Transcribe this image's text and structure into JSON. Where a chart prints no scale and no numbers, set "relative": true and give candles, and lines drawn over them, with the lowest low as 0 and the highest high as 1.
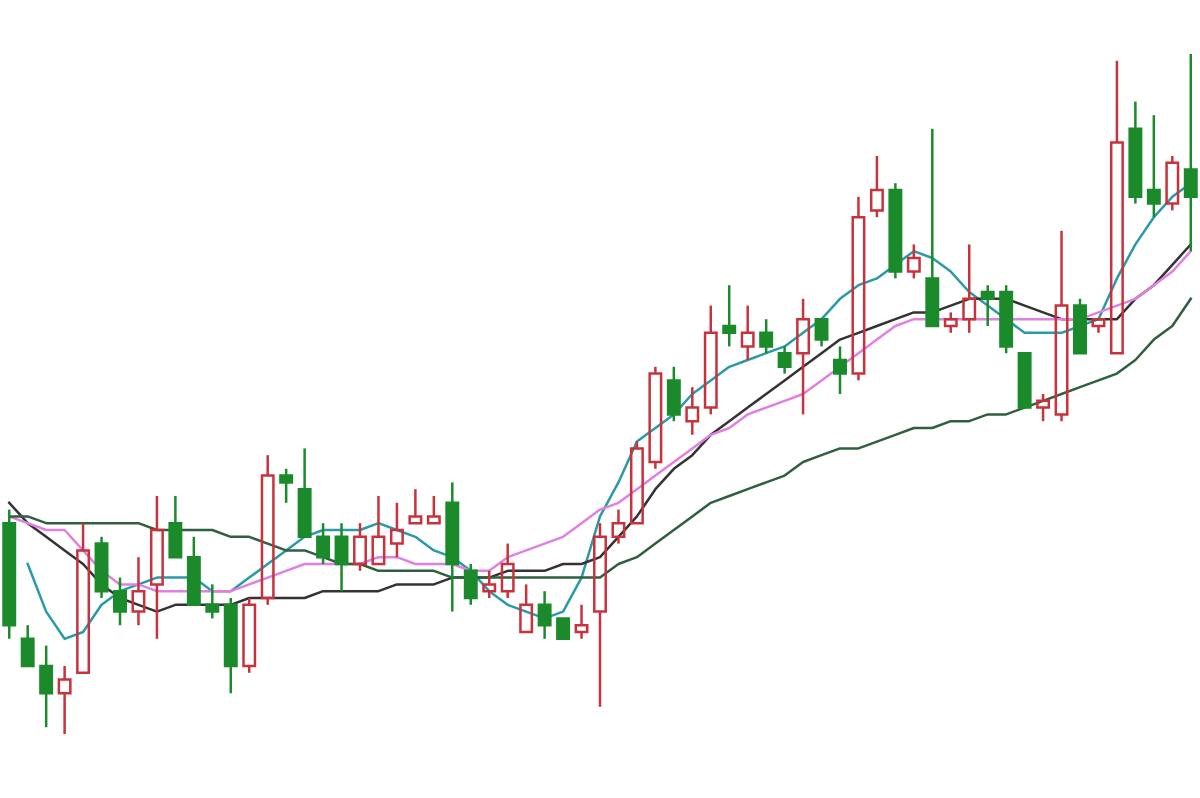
{
  "chart_data": {
    "type": "candlestick",
    "relative": true,
    "categories": [
      null,
      null,
      null,
      null,
      null,
      null,
      null,
      null,
      null,
      null,
      null,
      null,
      null,
      null,
      null,
      null,
      null,
      null,
      null,
      null,
      null,
      null,
      null,
      null,
      null,
      null,
      null,
      null,
      null,
      null,
      null,
      null,
      null,
      null,
      null,
      null,
      null,
      null,
      null,
      null,
      null,
      null,
      null,
      null,
      null,
      null,
      null,
      null,
      null,
      null,
      null,
      null,
      null,
      null,
      null,
      null,
      null,
      null,
      null,
      null,
      null,
      null,
      null,
      null,
      null
    ],
    "colors": [
      "#1a8a2a",
      "#1a8a2a",
      "#1a8a2a",
      "#c8323c",
      "#c8323c",
      "#1a8a2a",
      "#1a8a2a",
      "#c8323c",
      "#c8323c",
      "#1a8a2a",
      "#1a8a2a",
      "#1a8a2a",
      "#1a8a2a",
      "#c8323c",
      "#c8323c",
      "#1a8a2a",
      "#1a8a2a",
      "#1a8a2a",
      "#1a8a2a",
      "#c8323c",
      "#c8323c",
      "#c8323c",
      "#c8323c",
      "#c8323c",
      "#1a8a2a",
      "#1a8a2a",
      "#c8323c",
      "#c8323c",
      "#c8323c",
      "#1a8a2a",
      "#1a8a2a",
      "#c8323c",
      "#c8323c",
      "#c8323c",
      "#c8323c",
      "#c8323c",
      "#1a8a2a",
      "#c8323c",
      "#c8323c",
      "#1a8a2a",
      "#c8323c",
      "#1a8a2a",
      "#1a8a2a",
      "#c8323c",
      "#1a8a2a",
      "#1a8a2a",
      "#c8323c",
      "#c8323c",
      "#1a8a2a",
      "#c8323c",
      "#1a8a2a",
      "#c8323c",
      "#c8323c",
      "#1a8a2a",
      "#1a8a2a",
      "#1a8a2a",
      "#c8323c",
      "#c8323c",
      "#1a8a2a",
      "#c8323c",
      "#c8323c",
      "#1a8a2a",
      "#1a8a2a",
      "#c8323c",
      "#1a8a2a"
    ],
    "ohlc": [
      [
        0.31,
        0.33,
        0.14,
        0.16
      ],
      [
        0.14,
        0.16,
        0.1,
        0.1
      ],
      [
        0.1,
        0.13,
        0.01,
        0.06
      ],
      [
        0.06,
        0.1,
        0.0,
        0.08
      ],
      [
        0.09,
        0.31,
        0.09,
        0.27
      ],
      [
        0.28,
        0.29,
        0.2,
        0.21
      ],
      [
        0.21,
        0.23,
        0.16,
        0.18
      ],
      [
        0.18,
        0.26,
        0.16,
        0.21
      ],
      [
        0.22,
        0.35,
        0.14,
        0.3
      ],
      [
        0.31,
        0.35,
        0.26,
        0.26
      ],
      [
        0.26,
        0.29,
        0.19,
        0.19
      ],
      [
        0.19,
        0.22,
        0.17,
        0.18
      ],
      [
        0.19,
        0.2,
        0.06,
        0.1
      ],
      [
        0.1,
        0.2,
        0.09,
        0.19
      ],
      [
        0.2,
        0.41,
        0.19,
        0.38
      ],
      [
        0.38,
        0.39,
        0.34,
        0.37
      ],
      [
        0.36,
        0.42,
        0.29,
        0.29
      ],
      [
        0.29,
        0.31,
        0.25,
        0.26
      ],
      [
        0.29,
        0.31,
        0.21,
        0.25
      ],
      [
        0.25,
        0.31,
        0.24,
        0.29
      ],
      [
        0.25,
        0.35,
        0.25,
        0.29
      ],
      [
        0.28,
        0.34,
        0.26,
        0.3
      ],
      [
        0.31,
        0.36,
        0.31,
        0.32
      ],
      [
        0.31,
        0.35,
        0.31,
        0.32
      ],
      [
        0.34,
        0.37,
        0.18,
        0.25
      ],
      [
        0.24,
        0.25,
        0.19,
        0.2
      ],
      [
        0.21,
        0.24,
        0.2,
        0.22
      ],
      [
        0.21,
        0.28,
        0.2,
        0.25
      ],
      [
        0.15,
        0.22,
        0.15,
        0.19
      ],
      [
        0.19,
        0.21,
        0.14,
        0.16
      ],
      [
        0.17,
        0.17,
        0.14,
        0.14
      ],
      [
        0.15,
        0.19,
        0.14,
        0.16
      ],
      [
        0.18,
        0.31,
        0.04,
        0.29
      ],
      [
        0.29,
        0.33,
        0.28,
        0.31
      ],
      [
        0.31,
        0.43,
        0.31,
        0.42
      ],
      [
        0.4,
        0.54,
        0.39,
        0.53
      ],
      [
        0.52,
        0.54,
        0.46,
        0.47
      ],
      [
        0.46,
        0.51,
        0.44,
        0.48
      ],
      [
        0.48,
        0.63,
        0.47,
        0.59
      ],
      [
        0.6,
        0.66,
        0.57,
        0.59
      ],
      [
        0.57,
        0.63,
        0.55,
        0.59
      ],
      [
        0.59,
        0.61,
        0.56,
        0.57
      ],
      [
        0.56,
        0.57,
        0.53,
        0.54
      ],
      [
        0.56,
        0.64,
        0.47,
        0.61
      ],
      [
        0.61,
        0.61,
        0.57,
        0.58
      ],
      [
        0.55,
        0.57,
        0.5,
        0.53
      ],
      [
        0.53,
        0.79,
        0.52,
        0.76
      ],
      [
        0.77,
        0.85,
        0.76,
        0.8
      ],
      [
        0.8,
        0.81,
        0.67,
        0.68
      ],
      [
        0.68,
        0.72,
        0.67,
        0.7
      ],
      [
        0.67,
        0.89,
        0.6,
        0.6
      ],
      [
        0.6,
        0.62,
        0.59,
        0.61
      ],
      [
        0.61,
        0.72,
        0.59,
        0.64
      ],
      [
        0.65,
        0.66,
        0.6,
        0.64
      ],
      [
        0.65,
        0.66,
        0.56,
        0.57
      ],
      [
        0.56,
        0.56,
        0.48,
        0.48
      ],
      [
        0.48,
        0.5,
        0.46,
        0.49
      ],
      [
        0.47,
        0.74,
        0.46,
        0.63
      ],
      [
        0.63,
        0.64,
        0.56,
        0.56
      ],
      [
        0.6,
        0.61,
        0.59,
        0.61
      ],
      [
        0.56,
        0.99,
        0.56,
        0.87
      ],
      [
        0.89,
        0.93,
        0.78,
        0.79
      ],
      [
        0.8,
        0.91,
        0.76,
        0.78
      ],
      [
        0.78,
        0.85,
        0.77,
        0.84
      ],
      [
        0.83,
        1.0,
        0.71,
        0.79
      ]
    ],
    "series": [
      {
        "type": "line",
        "color": "#2a9aa8",
        "values": [
          null,
          0.25,
          0.18,
          0.14,
          0.15,
          0.19,
          0.21,
          0.22,
          0.23,
          0.23,
          0.23,
          0.21,
          0.21,
          0.23,
          0.25,
          0.27,
          0.29,
          0.3,
          0.3,
          0.3,
          0.31,
          0.3,
          0.29,
          0.27,
          0.26,
          0.24,
          0.21,
          0.19,
          0.18,
          0.17,
          0.18,
          0.23,
          0.32,
          0.37,
          0.43,
          0.45,
          0.47,
          0.5,
          0.52,
          0.54,
          0.55,
          0.56,
          0.57,
          0.59,
          0.61,
          0.64,
          0.66,
          0.67,
          0.69,
          0.71,
          0.7,
          0.68,
          0.65,
          0.63,
          0.61,
          0.59,
          0.59,
          0.59,
          0.6,
          0.61,
          0.67,
          0.72,
          0.76,
          0.79,
          0.81
        ]
      },
      {
        "type": "line",
        "color": "#333333",
        "values": [
          0.34,
          0.31,
          0.29,
          0.27,
          0.25,
          0.22,
          0.2,
          0.19,
          0.18,
          0.19,
          0.19,
          0.19,
          0.19,
          0.2,
          0.2,
          0.2,
          0.2,
          0.21,
          0.21,
          0.21,
          0.21,
          0.22,
          0.22,
          0.22,
          0.23,
          0.23,
          0.23,
          0.24,
          0.24,
          0.24,
          0.25,
          0.25,
          0.26,
          0.29,
          0.32,
          0.36,
          0.39,
          0.41,
          0.44,
          0.46,
          0.48,
          0.5,
          0.52,
          0.54,
          0.56,
          0.58,
          0.59,
          0.6,
          0.61,
          0.62,
          0.62,
          0.63,
          0.64,
          0.64,
          0.64,
          0.63,
          0.62,
          0.61,
          0.61,
          0.61,
          0.61,
          0.64,
          0.66,
          0.69,
          0.72
        ]
      },
      {
        "type": "line",
        "color": "#e080e0",
        "values": [
          0.32,
          0.31,
          0.3,
          0.3,
          0.27,
          0.24,
          0.22,
          0.22,
          0.21,
          0.21,
          0.21,
          0.21,
          0.21,
          0.22,
          0.23,
          0.24,
          0.25,
          0.25,
          0.25,
          0.25,
          0.26,
          0.26,
          0.25,
          0.25,
          0.25,
          0.24,
          0.24,
          0.26,
          0.27,
          0.28,
          0.29,
          0.31,
          0.33,
          0.34,
          0.36,
          0.38,
          0.4,
          0.42,
          0.44,
          0.45,
          0.47,
          0.48,
          0.49,
          0.5,
          0.52,
          0.54,
          0.56,
          0.58,
          0.6,
          0.61,
          0.61,
          0.61,
          0.61,
          0.61,
          0.61,
          0.61,
          0.61,
          0.61,
          0.61,
          0.62,
          0.63,
          0.64,
          0.66,
          0.68,
          0.71
        ]
      },
      {
        "type": "line",
        "color": "#2f5f3f",
        "values": [
          0.32,
          0.32,
          0.31,
          0.31,
          0.31,
          0.31,
          0.31,
          0.31,
          0.3,
          0.3,
          0.3,
          0.3,
          0.29,
          0.29,
          0.28,
          0.27,
          0.27,
          0.26,
          0.25,
          0.25,
          0.24,
          0.24,
          0.24,
          0.24,
          0.23,
          0.23,
          0.23,
          0.23,
          0.23,
          0.23,
          0.23,
          0.23,
          0.23,
          0.25,
          0.26,
          0.28,
          0.3,
          0.32,
          0.34,
          0.35,
          0.36,
          0.37,
          0.38,
          0.4,
          0.41,
          0.42,
          0.42,
          0.43,
          0.44,
          0.45,
          0.45,
          0.46,
          0.46,
          0.47,
          0.47,
          0.48,
          0.49,
          0.5,
          0.51,
          0.52,
          0.53,
          0.55,
          0.58,
          0.6,
          0.64
        ]
      }
    ]
  }
}
